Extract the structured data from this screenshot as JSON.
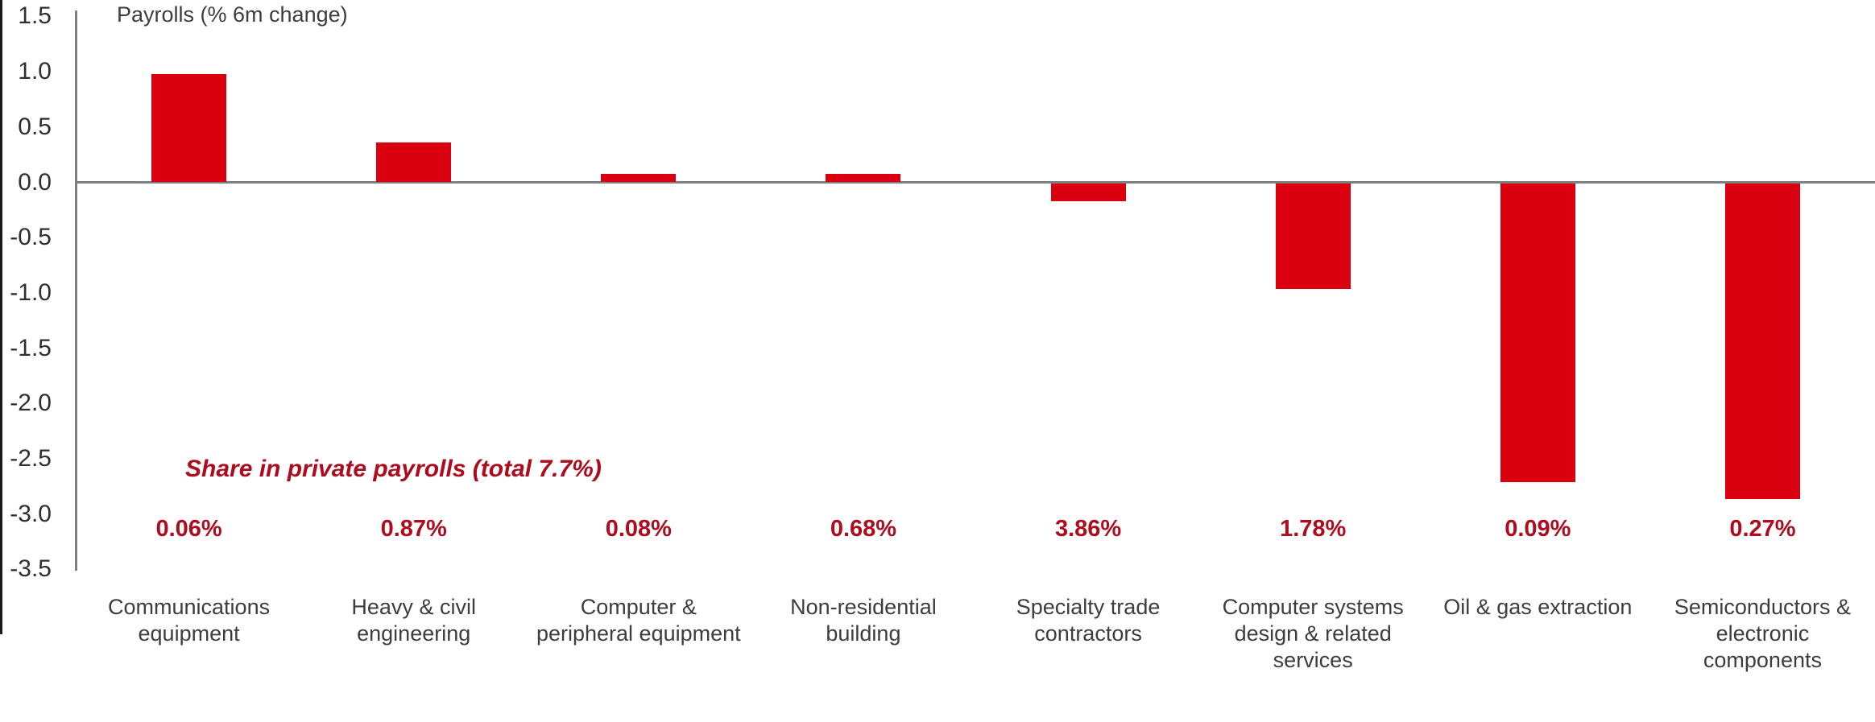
{
  "chart_data": {
    "type": "bar",
    "title": "Payrolls (% 6m change)",
    "categories": [
      "Communications\nequipment",
      "Heavy & civil\nengineering",
      "Computer &\nperipheral equipment",
      "Non-residential\nbuilding",
      "Specialty trade\ncontractors",
      "Computer systems\ndesign & related\nservices",
      "Oil & gas extraction",
      "Semiconductors &\nelectronic\ncomponents"
    ],
    "values": [
      0.98,
      0.36,
      0.08,
      0.08,
      -0.16,
      -0.95,
      -2.7,
      -2.85
    ],
    "share_title": "Share in private payrolls (total 7.7%)",
    "share_labels": [
      "0.06%",
      "0.87%",
      "0.08%",
      "0.68%",
      "3.86%",
      "1.78%",
      "0.09%",
      "0.27%"
    ],
    "xlabel": "",
    "ylabel": "",
    "ylim": [
      -3.5,
      1.5
    ],
    "ytick_labels": [
      "1.5",
      "1.0",
      "0.5",
      "0.0",
      "-0.5",
      "-1.0",
      "-1.5",
      "-2.0",
      "-2.5",
      "-3.0",
      "-3.5"
    ],
    "grid": false,
    "legend_position": "none",
    "colors": {
      "bar": "#db000f",
      "accent_text": "#ad0c1e",
      "axis": "#7f7f7f",
      "text": "#3d3d3d"
    }
  }
}
